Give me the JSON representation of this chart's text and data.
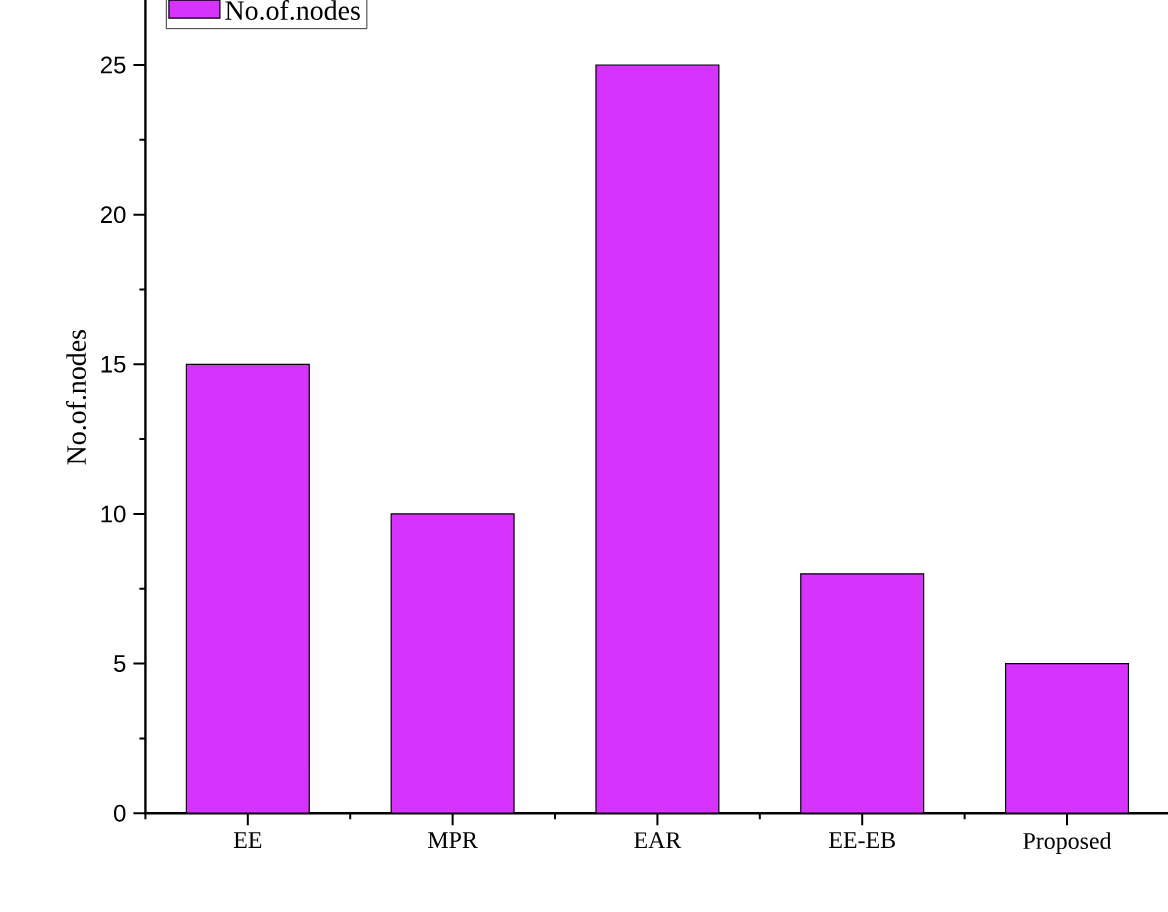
{
  "chart_data": {
    "type": "bar",
    "ylabel": "No.of.nodes",
    "categories": [
      "EE",
      "MPR",
      "EAR",
      "EE-EB",
      "Proposed"
    ],
    "series": [
      {
        "name": "No.of.nodes",
        "color": "#d633ff",
        "values": [
          15,
          10,
          25,
          8,
          5
        ]
      }
    ],
    "ylim": [
      0,
      27.8
    ],
    "yticks": [
      0,
      5,
      10,
      15,
      20,
      25
    ],
    "legend": "top left",
    "grid": false
  }
}
